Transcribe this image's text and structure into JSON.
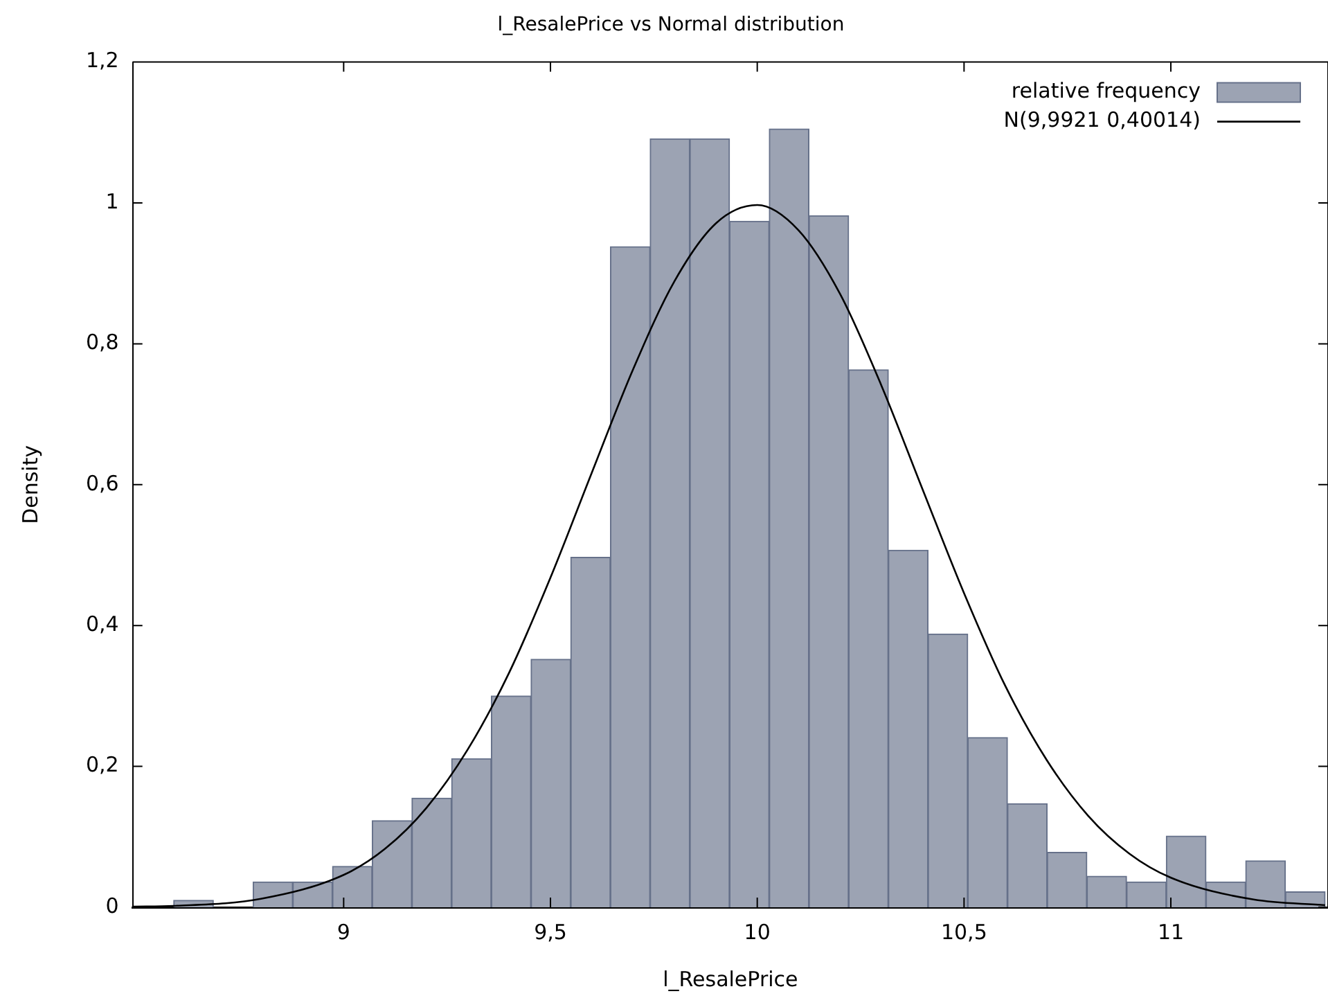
{
  "chart_data": {
    "type": "histogram",
    "title": "l_ResalePrice vs Normal distribution",
    "xlabel": "l_ResalePrice",
    "ylabel": "Density",
    "bins": [
      8.589,
      8.685,
      8.781,
      8.877,
      8.973,
      9.069,
      9.165,
      9.261,
      9.357,
      9.453,
      9.549,
      9.645,
      9.741,
      9.837,
      9.933,
      10.029,
      10.125,
      10.221,
      10.317,
      10.413,
      10.509,
      10.605,
      10.701,
      10.797,
      10.893,
      10.989,
      11.085,
      11.181,
      11.277,
      11.373
    ],
    "series": [
      {
        "name": "relative frequency",
        "color": "#9ca3b3",
        "values": [
          0.01,
          0,
          0.036,
          0.036,
          0.058,
          0.123,
          0.155,
          0.211,
          0.3,
          0.352,
          0.497,
          0.938,
          1.091,
          1.091,
          0.974,
          1.105,
          0.982,
          0.763,
          0.507,
          0.388,
          0.241,
          0.147,
          0.078,
          0.044,
          0.036,
          0.101,
          0.036,
          0.066,
          0.022
        ]
      },
      {
        "type": "line",
        "name": "N(9,9921 0,40014)",
        "color": "#000000",
        "x": [
          8.49,
          8.589,
          8.8,
          9.0,
          9.1,
          9.2,
          9.3,
          9.4,
          9.5,
          9.6,
          9.7,
          9.8,
          9.9,
          10.0,
          10.1,
          10.2,
          10.3,
          10.4,
          10.5,
          10.6,
          10.7,
          10.8,
          10.9,
          11.0,
          11.2,
          11.373
        ],
        "values": [
          0.001,
          0.002,
          0.012,
          0.046,
          0.083,
          0.141,
          0.224,
          0.333,
          0.468,
          0.617,
          0.764,
          0.889,
          0.971,
          0.997,
          0.961,
          0.871,
          0.741,
          0.593,
          0.446,
          0.314,
          0.209,
          0.13,
          0.076,
          0.042,
          0.011,
          0.003
        ]
      }
    ],
    "xlim": [
      8.49,
      11.38
    ],
    "ylim": [
      0,
      1.2
    ],
    "xticks": [
      9,
      {
        "value": 9.5,
        "label": "9,5"
      },
      10,
      {
        "value": 10.5,
        "label": "10,5"
      },
      11
    ],
    "yticks": [
      0,
      {
        "value": 0.2,
        "label": "0,2"
      },
      {
        "value": 0.4,
        "label": "0,4"
      },
      {
        "value": 0.6,
        "label": "0,6"
      },
      {
        "value": 0.8,
        "label": "0,8"
      },
      1,
      {
        "value": 1.2,
        "label": "1,2"
      }
    ],
    "legend": "top right",
    "marker": "none",
    "line_style": "solid"
  }
}
